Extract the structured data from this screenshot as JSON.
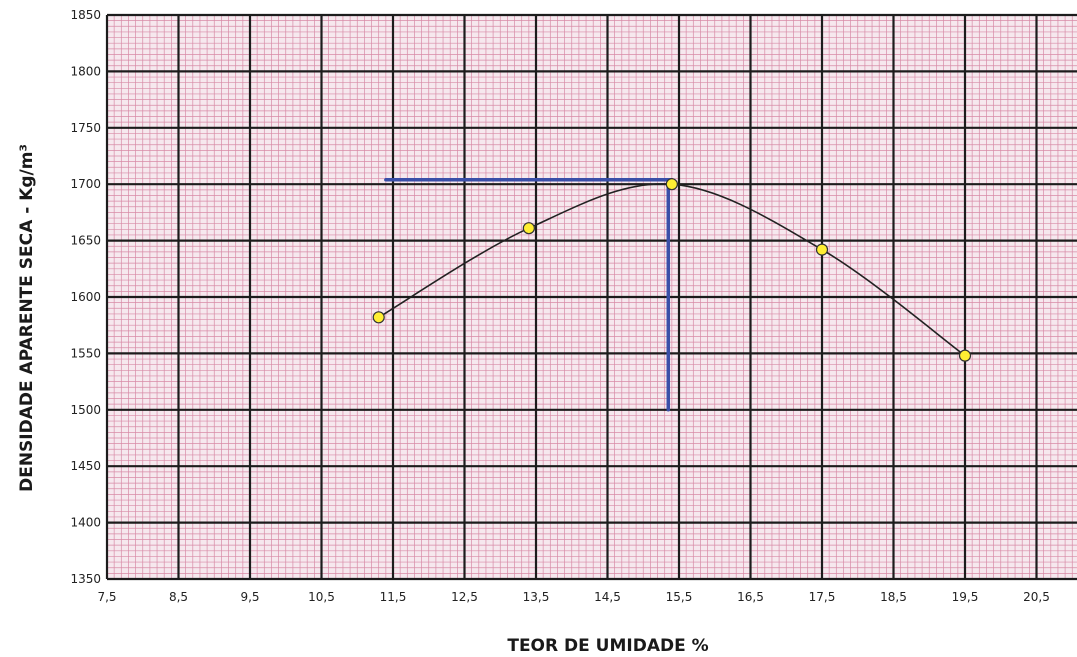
{
  "chart_data": {
    "type": "line",
    "xlabel": "TEOR DE UMIDADE %",
    "ylabel": "DENSIDADE APARENTE SECA - Kg/m³",
    "xlim": [
      7.5,
      21.5
    ],
    "ylim": [
      1350,
      1850
    ],
    "x_ticks": [
      "7,5",
      "8,5",
      "9,5",
      "10,5",
      "11,5",
      "12,5",
      "13,5",
      "14,5",
      "15,5",
      "16,5",
      "17,5",
      "18,5",
      "19,5",
      "20,5"
    ],
    "x_tick_values": [
      7.5,
      8.5,
      9.5,
      10.5,
      11.5,
      12.5,
      13.5,
      14.5,
      15.5,
      16.5,
      17.5,
      18.5,
      19.5,
      20.5
    ],
    "y_ticks": [
      1350,
      1400,
      1450,
      1500,
      1550,
      1600,
      1650,
      1700,
      1750,
      1800,
      1850
    ],
    "grid": true,
    "series": [
      {
        "x": [
          11.3,
          13.4,
          15.4,
          17.5,
          19.5
        ],
        "y": [
          1582,
          1661,
          1700,
          1642,
          1548
        ],
        "color": "#222222",
        "marker_color": "#ffee33"
      }
    ],
    "reference_lines": {
      "color": "#3a4fa8",
      "horizontal": {
        "x_start": 11.4,
        "x_end": 15.4,
        "y": 1704
      },
      "vertical": {
        "x": 15.35,
        "y_start": 1500,
        "y_end": 1704
      }
    },
    "colors": {
      "minor_grid": "#d88aa6",
      "major_grid": "#1c1c1c",
      "background": "#f6e8ee"
    }
  }
}
